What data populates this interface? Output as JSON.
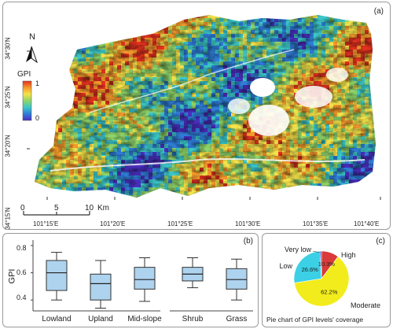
{
  "figure": {
    "panel_labels": {
      "a": "(a)",
      "b": "(b)",
      "c": "(c)"
    }
  },
  "map": {
    "north_label": "N",
    "legend": {
      "title": "GPI",
      "max_label": "1",
      "min_label": "0",
      "colors": [
        "#e2321f",
        "#f59a2c",
        "#f4e34a",
        "#8fd46a",
        "#3cc6c8",
        "#2f7ed8",
        "#4a2fbf"
      ]
    },
    "scale_bar": {
      "ticks": [
        "0",
        "5",
        "10"
      ],
      "unit": "Km"
    },
    "lat_labels": [
      "34°30'N",
      "34°25'N",
      "34°20'N",
      "34°15'N"
    ],
    "lon_labels": [
      "101°15'E",
      "101°20'E",
      "101°25'E",
      "101°30'E",
      "101°35'E",
      "101°40'E"
    ]
  },
  "boxplot": {
    "ylabel": "GPI",
    "y_ticks": [
      "0.4",
      "0.6",
      "0.8"
    ],
    "fill_color": "#aed3ef",
    "chart_data": {
      "type": "boxplot",
      "ylabel": "GPI",
      "ylim": [
        0.32,
        0.84
      ],
      "categories": [
        "Lowland",
        "Upland",
        "Mid-slope",
        "Shrub",
        "Grass"
      ],
      "groups": [
        {
          "name": "Lowland",
          "min": 0.4,
          "q1": 0.47,
          "median": 0.6,
          "q3": 0.69,
          "max": 0.75
        },
        {
          "name": "Upland",
          "min": 0.34,
          "q1": 0.4,
          "median": 0.52,
          "q3": 0.59,
          "max": 0.69
        },
        {
          "name": "Mid-slope",
          "min": 0.39,
          "q1": 0.48,
          "median": 0.55,
          "q3": 0.64,
          "max": 0.71
        },
        {
          "name": "Shrub",
          "min": 0.49,
          "q1": 0.54,
          "median": 0.59,
          "q3": 0.64,
          "max": 0.71
        },
        {
          "name": "Grass",
          "min": 0.4,
          "q1": 0.48,
          "median": 0.55,
          "q3": 0.63,
          "max": 0.7
        }
      ]
    }
  },
  "pie": {
    "caption": "Pie chart of GPI levels' coverage",
    "chart_data": {
      "type": "pie",
      "slices": [
        {
          "label": "High",
          "value_label": "10.3%",
          "value": 10.3,
          "color": "#d93a3a"
        },
        {
          "label": "Moderate",
          "value_label": "62.2%",
          "value": 62.2,
          "color": "#f2ec1c"
        },
        {
          "label": "Low",
          "value_label": "26.6%",
          "value": 26.6,
          "color": "#3bd0e6"
        },
        {
          "label": "Very low",
          "value_label": "",
          "value": 0.9,
          "color": "#3a4fc4"
        }
      ]
    }
  }
}
